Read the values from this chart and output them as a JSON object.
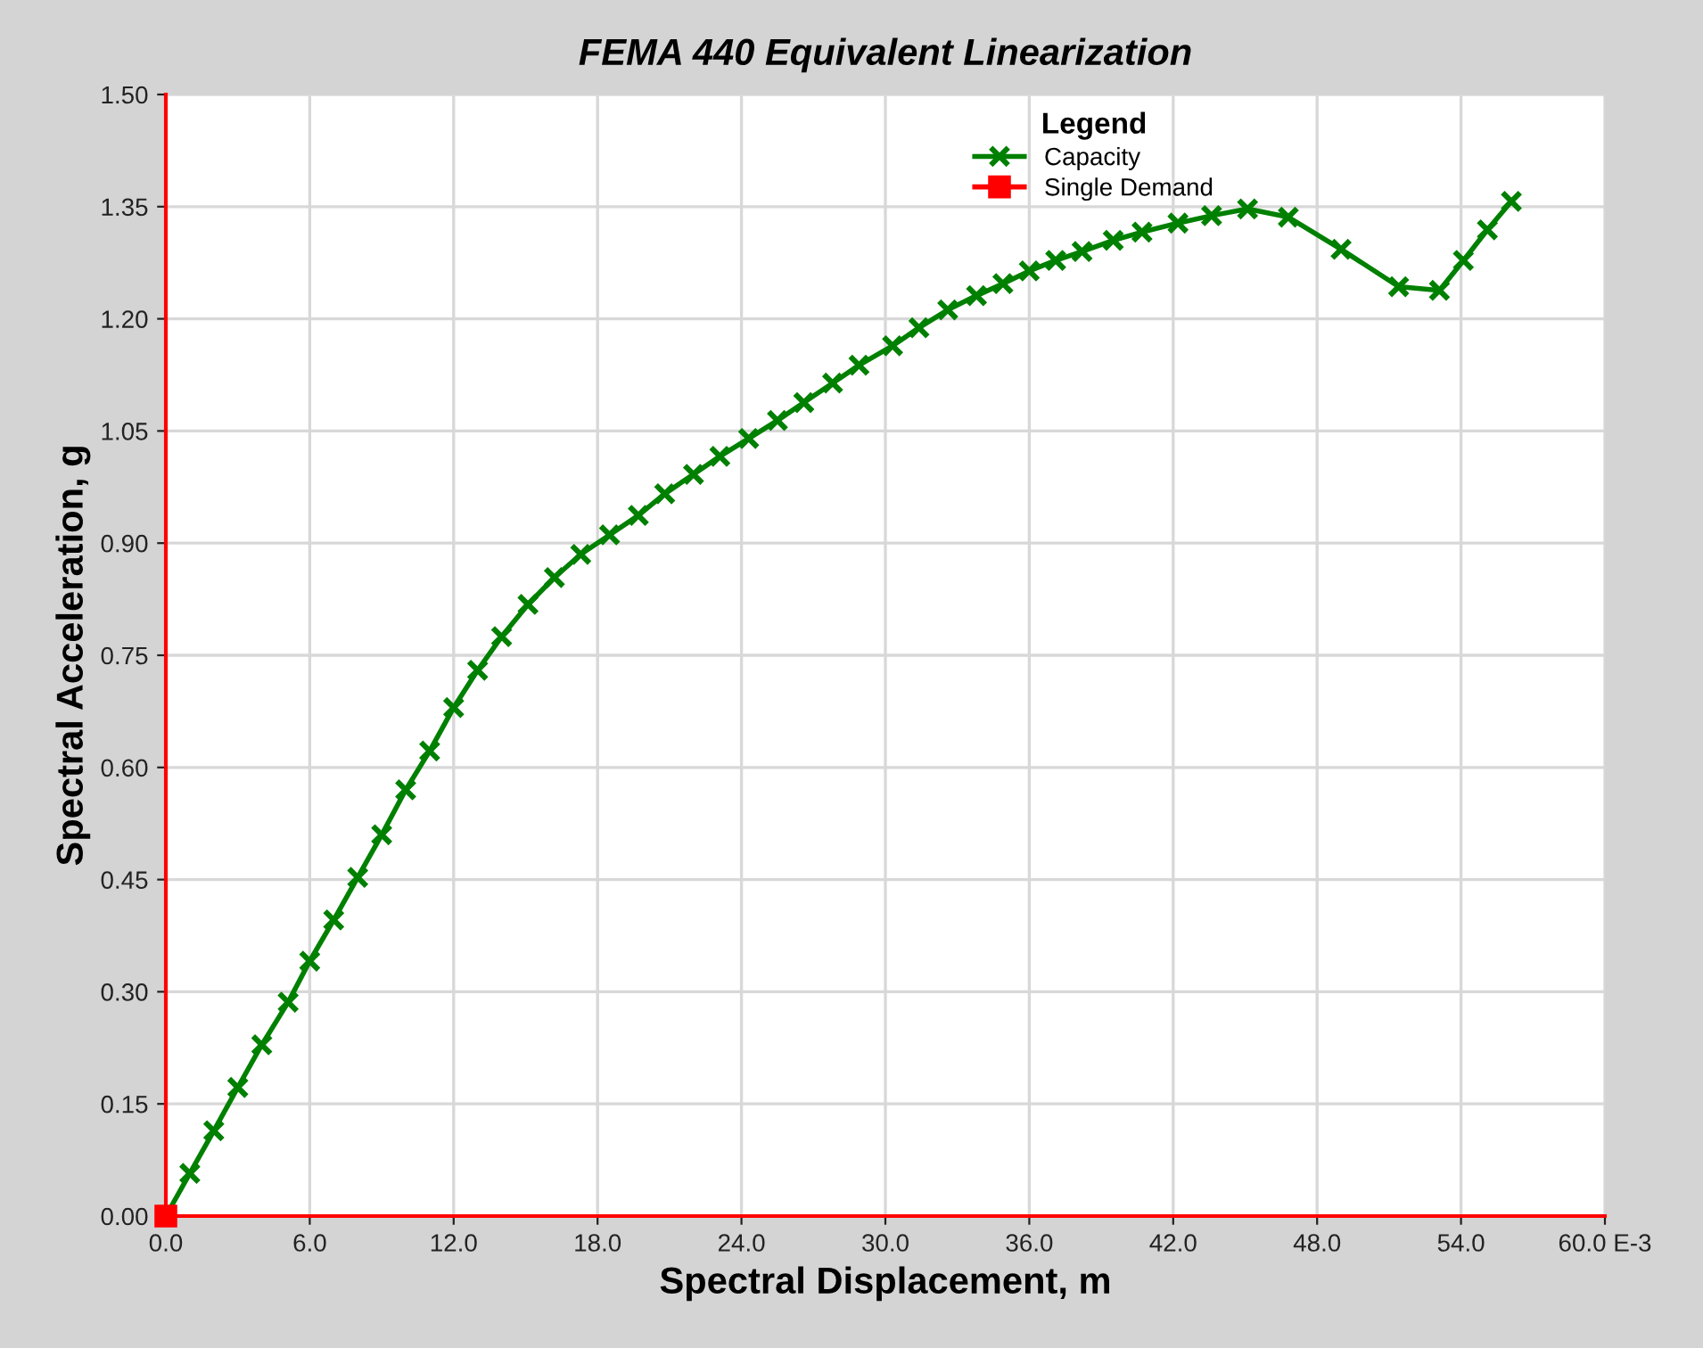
{
  "chart_data": {
    "type": "line",
    "title": "FEMA 440 Equivalent Linearization",
    "xlabel": "Spectral Displacement, m",
    "ylabel": "Spectral Acceleration, g",
    "legend_title": "Legend",
    "xlim": [
      0,
      60
    ],
    "ylim": [
      0,
      1.5
    ],
    "xticks": [
      {
        "value": 0,
        "label": "0.0"
      },
      {
        "value": 6,
        "label": "6.0"
      },
      {
        "value": 12,
        "label": "12.0"
      },
      {
        "value": 18,
        "label": "18.0"
      },
      {
        "value": 24,
        "label": "24.0"
      },
      {
        "value": 30,
        "label": "30.0"
      },
      {
        "value": 36,
        "label": "36.0"
      },
      {
        "value": 42,
        "label": "42.0"
      },
      {
        "value": 48,
        "label": "48.0"
      },
      {
        "value": 54,
        "label": "54.0"
      },
      {
        "value": 60,
        "label": "60.0 E-3"
      }
    ],
    "yticks": [
      {
        "value": 0,
        "label": "0.00"
      },
      {
        "value": 0.15,
        "label": "0.15"
      },
      {
        "value": 0.3,
        "label": "0.30"
      },
      {
        "value": 0.45,
        "label": "0.45"
      },
      {
        "value": 0.6,
        "label": "0.60"
      },
      {
        "value": 0.75,
        "label": "0.75"
      },
      {
        "value": 0.9,
        "label": "0.90"
      },
      {
        "value": 1.05,
        "label": "1.05"
      },
      {
        "value": 1.2,
        "label": "1.20"
      },
      {
        "value": 1.35,
        "label": "1.35"
      },
      {
        "value": 1.5,
        "label": "1.50"
      }
    ],
    "grid": true,
    "legend": "top right",
    "series": [
      {
        "name": "Capacity",
        "color": "#008000",
        "marker": "cross",
        "x": [
          0,
          1.0,
          2.0,
          3.0,
          4.0,
          5.1,
          6.0,
          7.0,
          8.0,
          9.0,
          10.0,
          11.0,
          12.0,
          13.0,
          14.0,
          15.1,
          16.2,
          17.3,
          18.5,
          19.7,
          20.8,
          22.0,
          23.1,
          24.3,
          25.5,
          26.6,
          27.8,
          28.9,
          30.3,
          31.4,
          32.6,
          33.8,
          34.9,
          36.0,
          37.1,
          38.2,
          39.5,
          40.7,
          42.2,
          43.6,
          45.1,
          46.8,
          49.0,
          51.4,
          53.1,
          54.1,
          55.1,
          56.1
        ],
        "values": [
          0,
          0.057,
          0.114,
          0.172,
          0.229,
          0.286,
          0.341,
          0.396,
          0.453,
          0.51,
          0.57,
          0.622,
          0.68,
          0.73,
          0.775,
          0.818,
          0.854,
          0.885,
          0.911,
          0.937,
          0.966,
          0.992,
          1.016,
          1.04,
          1.064,
          1.088,
          1.114,
          1.138,
          1.164,
          1.188,
          1.212,
          1.231,
          1.247,
          1.264,
          1.278,
          1.29,
          1.305,
          1.316,
          1.328,
          1.338,
          1.347,
          1.336,
          1.293,
          1.243,
          1.238,
          1.278,
          1.319,
          1.357
        ]
      },
      {
        "name": "Single Demand",
        "color": "#ff0000",
        "marker": "square",
        "x": [
          0
        ],
        "values": [
          0
        ]
      }
    ]
  }
}
